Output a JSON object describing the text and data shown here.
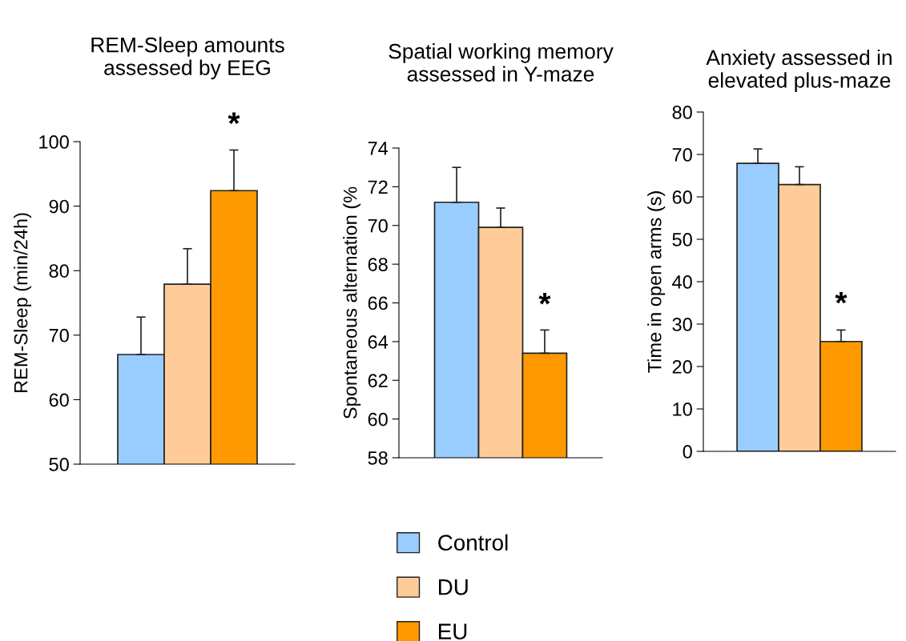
{
  "chart_data": [
    {
      "type": "bar",
      "title": "REM-Sleep amounts\nassessed by EEG",
      "ylabel": "REM-Sleep (min/24h)",
      "categories": [
        null
      ],
      "ylim": [
        50,
        100
      ],
      "yticks": [
        50,
        60,
        70,
        80,
        90,
        100
      ],
      "legend": "bottom",
      "annotations": [
        "*"
      ],
      "series": [
        {
          "name": "Control",
          "color": "#99ccff",
          "values": [
            67.0
          ],
          "errors": [
            [
              67.0,
              72.8
            ]
          ]
        },
        {
          "name": "DU",
          "color": "#ffcc99",
          "values": [
            77.9
          ],
          "errors": [
            [
              77.9,
              83.4
            ]
          ]
        },
        {
          "name": "EU",
          "color": "#ff9900",
          "values": [
            92.4
          ],
          "errors": [
            [
              92.4,
              98.7
            ]
          ]
        }
      ]
    },
    {
      "type": "bar",
      "title": "Spatial working memory\nassessed in Y-maze",
      "ylabel": "Spontaneous alternation (%",
      "categories": [
        null
      ],
      "ylim": [
        58,
        74
      ],
      "yticks": [
        58,
        60,
        62,
        64,
        66,
        68,
        70,
        72,
        74
      ],
      "legend": "bottom",
      "annotations": [
        "*"
      ],
      "series": [
        {
          "name": "Control",
          "color": "#99ccff",
          "values": [
            71.2
          ],
          "errors": [
            [
              71.2,
              73.0
            ]
          ]
        },
        {
          "name": "DU",
          "color": "#ffcc99",
          "values": [
            69.9
          ],
          "errors": [
            [
              69.9,
              70.9
            ]
          ]
        },
        {
          "name": "EU",
          "color": "#ff9900",
          "values": [
            63.4
          ],
          "errors": [
            [
              63.4,
              64.6
            ]
          ]
        }
      ]
    },
    {
      "type": "bar",
      "title": "Anxiety assessed in\nelevated plus-maze",
      "ylabel": "Time in open arms (s)",
      "categories": [
        null
      ],
      "ylim": [
        0,
        80
      ],
      "yticks": [
        0,
        10,
        20,
        30,
        40,
        50,
        60,
        70,
        80
      ],
      "legend": "bottom",
      "annotations": [
        "*"
      ],
      "series": [
        {
          "name": "Control",
          "color": "#99ccff",
          "values": [
            67.9
          ],
          "errors": [
            [
              67.9,
              71.3
            ]
          ]
        },
        {
          "name": "DU",
          "color": "#ffcc99",
          "values": [
            62.9
          ],
          "errors": [
            [
              62.9,
              67.1
            ]
          ]
        },
        {
          "name": "EU",
          "color": "#ff9900",
          "values": [
            25.9
          ],
          "errors": [
            [
              25.9,
              28.6
            ]
          ]
        }
      ]
    }
  ]
}
